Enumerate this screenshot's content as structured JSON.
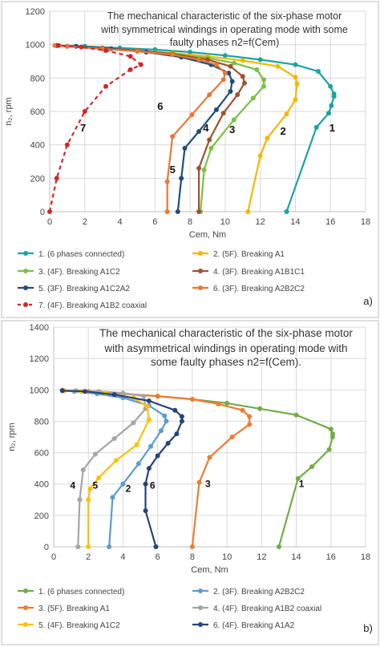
{
  "chart_data": [
    {
      "type": "line",
      "panel_label": "a)",
      "title": "The mechanical characteristic of the six-phase motor with symmetrical windings in operating mode with some faulty phases n2=f(Cem)",
      "xlabel": "Cem, Nm",
      "ylabel": "n₂, rpm",
      "xlim": [
        0,
        18
      ],
      "ylim": [
        0,
        1200
      ],
      "x_ticks": [
        0,
        2,
        4,
        6,
        8,
        10,
        12,
        14,
        16,
        18
      ],
      "y_ticks": [
        0,
        200,
        400,
        600,
        800,
        1000,
        1200
      ],
      "grid": true,
      "legend_position": "bottom",
      "series": [
        {
          "name": "1. (6 phases connected)",
          "curve_label": "1",
          "label_at": [
            16.1,
            480
          ],
          "color": "#1aa3a3",
          "dashed": false,
          "x": [
            13.5,
            15.2,
            15.9,
            16.05,
            16.2,
            16.2,
            16.0,
            15.3,
            14.0,
            12.0,
            10.0,
            8.0,
            6.0,
            4.0,
            2.0,
            0.4
          ],
          "y": [
            0,
            505,
            590,
            635,
            690,
            705,
            750,
            840,
            880,
            910,
            935,
            955,
            970,
            980,
            990,
            995
          ]
        },
        {
          "name": "2. (5F). Breaking A1",
          "curve_label": "2",
          "label_at": [
            13.3,
            460
          ],
          "color": "#f5b800",
          "dashed": false,
          "x": [
            11.3,
            12.0,
            12.4,
            13.5,
            14.0,
            14.1,
            14.0,
            13.0,
            11.0,
            9.0,
            7.0,
            5.0,
            3.0,
            1.0,
            0.3
          ],
          "y": [
            0,
            335,
            440,
            585,
            670,
            765,
            805,
            870,
            905,
            930,
            950,
            965,
            980,
            990,
            995
          ]
        },
        {
          "name": "3. (4F). Breaking A1C2",
          "curve_label": "3",
          "label_at": [
            10.4,
            470
          ],
          "color": "#7ac143",
          "dashed": false,
          "x": [
            8.6,
            8.8,
            9.2,
            10.5,
            11.6,
            12.2,
            12.2,
            11.8,
            10.5,
            9.0,
            7.0,
            5.0,
            3.0,
            1.0,
            0.4
          ],
          "y": [
            0,
            250,
            380,
            550,
            680,
            750,
            790,
            850,
            890,
            920,
            945,
            960,
            975,
            990,
            995
          ]
        },
        {
          "name": "4. (3F). Breaking A1B1C1",
          "curve_label": "4",
          "label_at": [
            8.9,
            480
          ],
          "color": "#a0522d",
          "dashed": false,
          "x": [
            8.5,
            8.5,
            9.1,
            9.9,
            10.7,
            11.1,
            11.0,
            10.3,
            9.0,
            7.0,
            5.0,
            3.0,
            1.0,
            0.4
          ],
          "y": [
            0,
            260,
            430,
            590,
            700,
            770,
            810,
            870,
            910,
            945,
            965,
            980,
            990,
            995
          ]
        },
        {
          "name": "5. (3F). Breaking A1C2A2",
          "curve_label": "5",
          "label_at": [
            7.0,
            230
          ],
          "color": "#1f4e79",
          "dashed": false,
          "x": [
            7.3,
            7.5,
            7.7,
            8.5,
            9.5,
            10.3,
            10.4,
            10.2,
            9.2,
            7.5,
            5.5,
            3.5,
            1.5,
            0.4
          ],
          "y": [
            0,
            200,
            380,
            480,
            610,
            720,
            780,
            830,
            880,
            925,
            955,
            975,
            990,
            995
          ]
        },
        {
          "name": "6. (3F). Breaking A2B2C2",
          "curve_label": "6",
          "label_at": [
            6.3,
            610
          ],
          "color": "#e8773a",
          "dashed": false,
          "x": [
            6.7,
            6.7,
            7.0,
            8.1,
            9.1,
            9.9,
            10.0,
            9.5,
            8.5,
            7.0,
            5.0,
            3.0,
            1.0,
            0.3
          ],
          "y": [
            0,
            180,
            450,
            580,
            700,
            790,
            830,
            880,
            910,
            940,
            960,
            975,
            990,
            995
          ]
        },
        {
          "name": "7. (4F). Breaking A1B2 coaxial",
          "curve_label": "7",
          "label_at": [
            1.9,
            480
          ],
          "color": "#d02828",
          "dashed": true,
          "x": [
            0.0,
            0.4,
            1.0,
            2.0,
            3.2,
            4.6,
            5.2,
            4.6,
            3.2,
            1.8,
            0.5
          ],
          "y": [
            0,
            200,
            400,
            600,
            750,
            850,
            880,
            930,
            965,
            985,
            995
          ]
        }
      ]
    },
    {
      "type": "line",
      "panel_label": "b)",
      "title": "The mechanical characteristic of the six-phase motor with asymmetrical windings in operating mode with some faulty phases n2=f(Cem).",
      "xlabel": "Cem, Nm",
      "ylabel": "n₂, rpm",
      "xlim": [
        0,
        18
      ],
      "ylim": [
        0,
        1400
      ],
      "x_ticks": [
        0,
        2,
        4,
        6,
        8,
        10,
        12,
        14,
        16,
        18
      ],
      "y_ticks": [
        0,
        200,
        400,
        600,
        800,
        1000,
        1200,
        1400
      ],
      "grid": true,
      "legend_position": "bottom",
      "series": [
        {
          "name": "1. (6 phases connected)",
          "curve_label": "1",
          "label_at": [
            14.3,
            380
          ],
          "color": "#70ad47",
          "dashed": false,
          "x": [
            13.0,
            14.1,
            14.9,
            15.9,
            16.1,
            16.1,
            16.0,
            14.0,
            11.9,
            10.0,
            8.0,
            6.0,
            4.0,
            2.0,
            0.6
          ],
          "y": [
            0,
            435,
            510,
            620,
            700,
            720,
            750,
            840,
            880,
            915,
            940,
            960,
            975,
            990,
            995
          ]
        },
        {
          "name": "2. (3F). Breaking A2B2C2",
          "curve_label": "2",
          "label_at": [
            4.3,
            350
          ],
          "color": "#5b9bd5",
          "dashed": false,
          "x": [
            3.2,
            3.4,
            4.0,
            4.9,
            5.6,
            6.2,
            6.5,
            6.4,
            5.5,
            4.0,
            2.5,
            1.2,
            0.5
          ],
          "y": [
            0,
            315,
            400,
            530,
            640,
            740,
            800,
            835,
            900,
            950,
            975,
            990,
            995
          ]
        },
        {
          "name": "3. (5F). Breaking A1",
          "curve_label": "3",
          "label_at": [
            8.9,
            380
          ],
          "color": "#ed7d31",
          "dashed": false,
          "x": [
            8.0,
            8.4,
            9.0,
            10.3,
            11.3,
            11.3,
            10.9,
            9.5,
            8.0,
            6.0,
            4.0,
            2.0,
            0.5
          ],
          "y": [
            0,
            410,
            570,
            700,
            780,
            830,
            870,
            910,
            940,
            960,
            975,
            990,
            995
          ]
        },
        {
          "name": "4. (4F). Breaking A1B2 coaxial",
          "curve_label": "4",
          "label_at": [
            1.1,
            370
          ],
          "color": "#a5a5a5",
          "dashed": false,
          "x": [
            1.4,
            1.5,
            1.7,
            2.4,
            3.5,
            4.6,
            5.3,
            5.2,
            4.0,
            2.6,
            1.3,
            0.5
          ],
          "y": [
            0,
            300,
            490,
            590,
            690,
            790,
            880,
            960,
            980,
            990,
            995,
            998
          ]
        },
        {
          "name": "5. (4F). Breaking A1C2",
          "curve_label": "5",
          "label_at": [
            2.4,
            370
          ],
          "color": "#ffc000",
          "dashed": false,
          "x": [
            2.0,
            2.0,
            2.1,
            2.6,
            3.6,
            4.8,
            5.5,
            5.4,
            4.6,
            3.0,
            1.6,
            0.6
          ],
          "y": [
            0,
            300,
            370,
            440,
            550,
            650,
            810,
            895,
            950,
            980,
            990,
            995
          ]
        },
        {
          "name": "6. (4F). Breaking A1A2",
          "curve_label": "6",
          "label_at": [
            5.7,
            370
          ],
          "color": "#264478",
          "dashed": false,
          "x": [
            5.9,
            5.3,
            5.3,
            5.5,
            6.0,
            6.6,
            7.1,
            7.4,
            7.4,
            7.0,
            5.5,
            3.5,
            1.8,
            0.5
          ],
          "y": [
            0,
            230,
            400,
            500,
            580,
            660,
            720,
            800,
            830,
            870,
            930,
            970,
            990,
            995
          ]
        }
      ]
    }
  ]
}
